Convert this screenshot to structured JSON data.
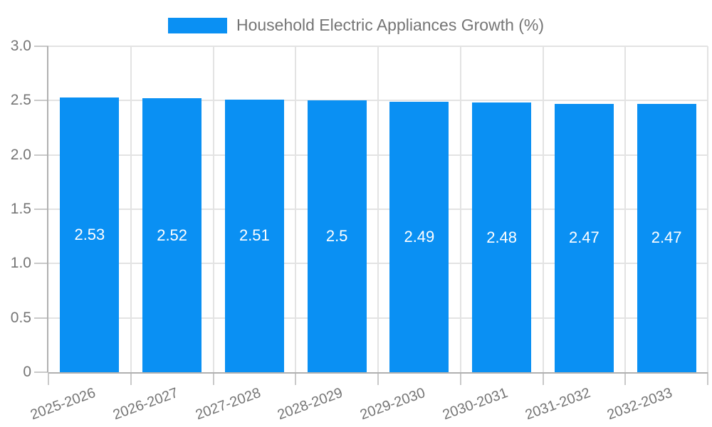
{
  "legend": {
    "label": "Household Electric Appliances Growth (%)"
  },
  "colors": {
    "bar": "#0a90f3",
    "grid": "#e3e3e3",
    "axis": "#b0b0b0",
    "tick": "#c9c9c9",
    "text": "#757575",
    "value_label": "#ffffff",
    "background": "#ffffff"
  },
  "chart_data": {
    "type": "bar",
    "title": "Household Electric Appliances Growth (%)",
    "categories": [
      "2025-2026",
      "2026-2027",
      "2027-2028",
      "2028-2029",
      "2029-2030",
      "2030-2031",
      "2031-2032",
      "2032-2033"
    ],
    "values": [
      2.53,
      2.52,
      2.51,
      2.5,
      2.49,
      2.48,
      2.47,
      2.47
    ],
    "value_labels": [
      "2.53",
      "2.52",
      "2.51",
      "2.5",
      "2.49",
      "2.48",
      "2.47",
      "2.47"
    ],
    "xlabel": "",
    "ylabel": "",
    "ylim": [
      0,
      3.0
    ],
    "yticks": [
      0,
      0.5,
      1.0,
      1.5,
      2.0,
      2.5,
      3.0
    ],
    "ytick_labels": [
      "0",
      "0.5",
      "1.0",
      "1.5",
      "2.0",
      "2.5",
      "3.0"
    ],
    "grid": true,
    "legend_position": "top",
    "bar_label_position": "center",
    "xtick_rotation_deg": -20
  }
}
